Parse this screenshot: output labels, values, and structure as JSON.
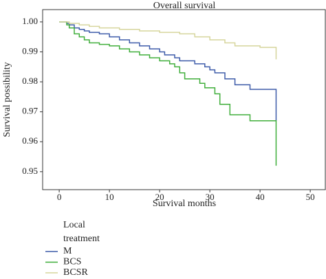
{
  "chart_data": {
    "type": "step",
    "title": "Overall survival",
    "x_label": "Survival months",
    "y_label": "Survival possibility",
    "legend_title": "Local treatment",
    "xlim": [
      -3.3,
      53
    ],
    "xticks": [
      0,
      10,
      20,
      30,
      40,
      50
    ],
    "ylim": [
      0.944,
      1.0041
    ],
    "yticks": [
      {
        "value": 1,
        "label": "1.00"
      },
      0.99,
      0.98,
      0.97,
      0.96,
      0.95
    ],
    "series": [
      {
        "name": "M",
        "color": "#3d5ba9",
        "x": [
          0,
          1.5,
          2,
          3,
          4,
          5,
          6,
          8,
          10,
          12,
          14,
          16,
          18,
          20,
          21,
          23,
          24,
          27,
          29,
          30,
          31,
          33,
          35,
          38,
          43.2,
          43.2
        ],
        "values": [
          1,
          0.9995,
          0.999,
          0.998,
          0.9975,
          0.997,
          0.9965,
          0.996,
          0.995,
          0.994,
          0.993,
          0.992,
          0.991,
          0.99,
          0.989,
          0.988,
          0.987,
          0.986,
          0.985,
          0.984,
          0.983,
          0.981,
          0.979,
          0.9775,
          0.9775,
          0.967
        ]
      },
      {
        "name": "BCS",
        "color": "#3fae3a",
        "x": [
          0,
          1.5,
          2,
          3,
          4,
          5,
          6,
          8,
          10,
          12,
          14,
          16,
          18,
          20,
          22,
          23,
          24,
          25,
          28,
          29,
          31,
          32,
          34,
          38,
          43.2,
          43.2
        ],
        "values": [
          1,
          0.999,
          0.998,
          0.996,
          0.995,
          0.994,
          0.993,
          0.9925,
          0.992,
          0.991,
          0.99,
          0.989,
          0.988,
          0.987,
          0.986,
          0.985,
          0.983,
          0.981,
          0.9795,
          0.978,
          0.976,
          0.9725,
          0.969,
          0.967,
          0.967,
          0.952
        ]
      },
      {
        "name": "BCSR",
        "color": "#d6d59c",
        "x": [
          0,
          2,
          4,
          6,
          8,
          12,
          16,
          20,
          24,
          27,
          30,
          33,
          35,
          40,
          43.2,
          43.2
        ],
        "values": [
          1,
          0.9995,
          0.999,
          0.9985,
          0.998,
          0.9975,
          0.997,
          0.9965,
          0.996,
          0.995,
          0.994,
          0.993,
          0.992,
          0.9915,
          0.991,
          0.9875
        ]
      }
    ]
  }
}
